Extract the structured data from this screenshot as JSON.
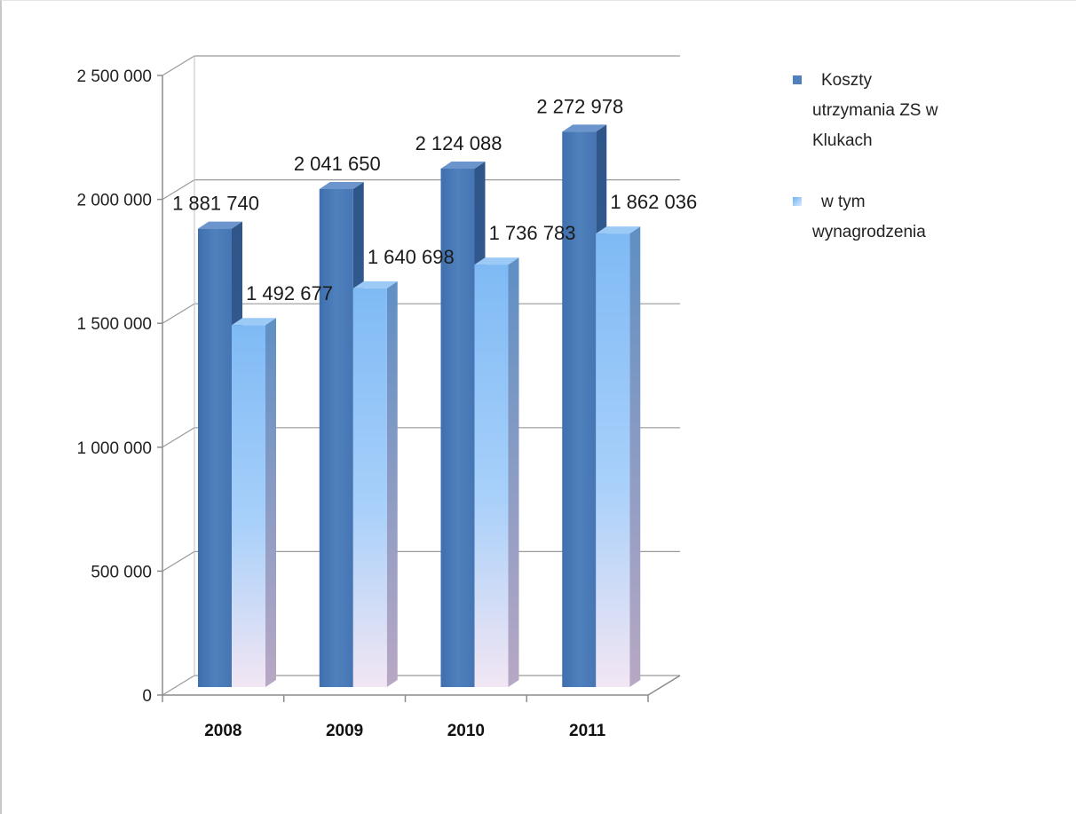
{
  "chart_data": {
    "type": "bar",
    "categories": [
      "2008",
      "2009",
      "2010",
      "2011"
    ],
    "series": [
      {
        "name": "Koszty utrzymania ZS w Klukach",
        "legend_lines": [
          "Koszty",
          "utrzymania ZS w",
          "Klukach"
        ],
        "values": [
          1881740,
          2041650,
          2124088,
          2272978
        ],
        "labels": [
          "1 881 740",
          "2 041 650",
          "2 124 088",
          "2 272 978"
        ],
        "color": "#4f81bd"
      },
      {
        "name": "w tym wynagrodzenia",
        "legend_lines": [
          "w tym",
          "wynagrodzenia"
        ],
        "values": [
          1492677,
          1640698,
          1736783,
          1862036
        ],
        "labels": [
          "1 492 677",
          "1 640 698",
          "1 736 783",
          "1 862 036"
        ],
        "color": "#8dc3f5"
      }
    ],
    "yticks": [
      {
        "value": 0,
        "label": "0"
      },
      {
        "value": 500000,
        "label": "500 000"
      },
      {
        "value": 1000000,
        "label": "1 000 000"
      },
      {
        "value": 1500000,
        "label": "1 500 000"
      },
      {
        "value": 2000000,
        "label": "2 000 000"
      },
      {
        "value": 2500000,
        "label": "2 500 000"
      }
    ],
    "ylim": [
      0,
      2500000
    ],
    "grid": true,
    "legend_position": "right"
  }
}
